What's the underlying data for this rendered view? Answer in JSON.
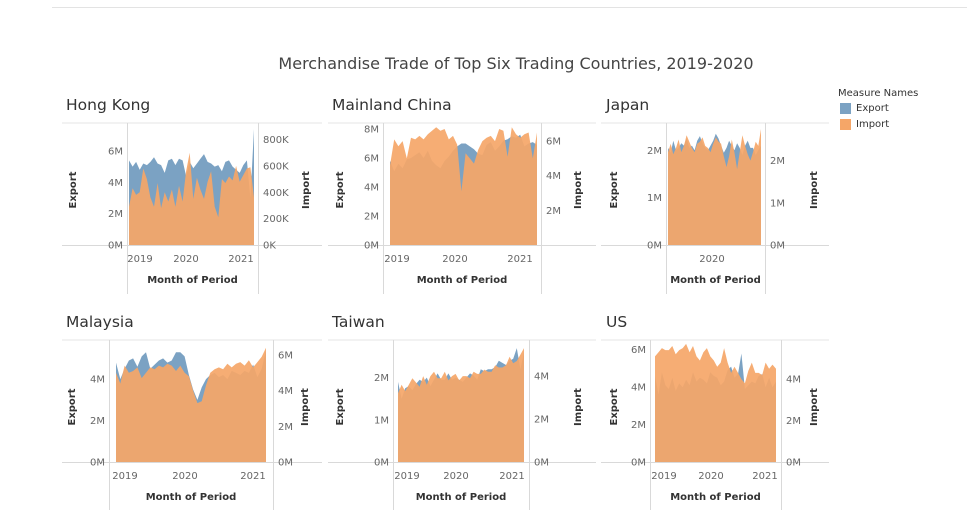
{
  "title": "Merchandise Trade of Top Six Trading Countries, 2019-2020",
  "legend": {
    "title": "Measure Names",
    "items": [
      {
        "label": "Export",
        "color": "#7ba2c3"
      },
      {
        "label": "Import",
        "color": "#f5a668"
      }
    ]
  },
  "chart_data": [
    {
      "type": "area",
      "title": "Hong Kong",
      "x_ticks": [
        "2019",
        "2020",
        "2021"
      ],
      "xlabel": "Month of Period",
      "y_left": {
        "label": "Export",
        "ticks": [
          "0M",
          "2M",
          "4M",
          "6M"
        ],
        "max": 7.4
      },
      "y_right": {
        "label": "Import",
        "ticks": [
          "0K",
          "200K",
          "400K",
          "600K",
          "800K"
        ],
        "max": 880
      },
      "series": [
        {
          "name": "Export",
          "values": [
            5.4,
            5.0,
            5.3,
            4.8,
            5.2,
            5.1,
            5.3,
            5.6,
            5.2,
            5.1,
            4.6,
            5.4,
            5.5,
            5.1,
            5.5,
            5.4,
            4.4,
            5.3,
            4.9,
            5.2,
            5.5,
            5.8,
            5.3,
            5.2,
            5.0,
            5.1,
            4.7,
            5.3,
            5.4,
            5.0,
            4.8,
            4.6,
            5.1,
            5.4,
            3.0,
            7.4
          ]
        },
        {
          "name": "Import",
          "values": [
            290,
            430,
            380,
            400,
            580,
            500,
            360,
            290,
            470,
            280,
            400,
            330,
            420,
            290,
            450,
            330,
            560,
            700,
            350,
            510,
            420,
            350,
            480,
            560,
            290,
            210,
            500,
            470,
            520,
            490,
            600,
            480,
            530,
            580,
            590,
            360
          ]
        }
      ]
    },
    {
      "type": "area",
      "title": "Mainland China",
      "x_ticks": [
        "2019",
        "2020",
        "2021"
      ],
      "xlabel": "Month of Period",
      "y_left": {
        "label": "Export",
        "ticks": [
          "0M",
          "2M",
          "4M",
          "6M",
          "8M"
        ],
        "max": 8.0
      },
      "y_right": {
        "label": "Import",
        "ticks": [
          "2M",
          "4M",
          "6M"
        ],
        "max": 6.7
      },
      "series": [
        {
          "name": "Export",
          "values": [
            5.8,
            5.1,
            5.6,
            5.3,
            5.9,
            6.0,
            6.2,
            6.4,
            6.0,
            6.5,
            5.8,
            5.5,
            5.3,
            5.8,
            6.1,
            6.5,
            6.8,
            7.0,
            7.0,
            6.8,
            6.6,
            6.3,
            6.2,
            6.9,
            7.1,
            6.5,
            6.8,
            7.2,
            7.3,
            7.5,
            7.4,
            7.6,
            6.8,
            7.0,
            7.1,
            6.9
          ]
        },
        {
          "name": "Import",
          "values": [
            4.6,
            6.1,
            5.7,
            6.0,
            5.0,
            6.2,
            6.1,
            6.3,
            6.1,
            6.4,
            6.6,
            6.8,
            6.6,
            6.7,
            6.1,
            6.3,
            5.8,
            3.1,
            5.3,
            5.0,
            4.7,
            5.5,
            6.0,
            6.2,
            6.3,
            6.0,
            6.7,
            6.6,
            5.1,
            6.8,
            6.4,
            6.2,
            6.4,
            6.5,
            5.0,
            6.5
          ]
        }
      ]
    },
    {
      "type": "area",
      "title": "Japan",
      "x_ticks": [
        "2020"
      ],
      "xlabel": "Month of Period",
      "y_left": {
        "label": "Export",
        "ticks": [
          "0M",
          "1M",
          "2M"
        ],
        "max": 2.45
      },
      "y_right": {
        "label": "Import",
        "ticks": [
          "0M",
          "1M",
          "2M"
        ],
        "max": 2.75
      },
      "series": [
        {
          "name": "Export",
          "values": [
            2.05,
            1.95,
            2.2,
            2.0,
            2.05,
            2.15,
            2.1,
            2.25,
            2.05,
            2.1,
            2.0,
            2.2,
            2.3,
            2.15,
            2.05,
            2.0,
            2.1,
            2.2,
            2.35,
            2.25,
            2.1,
            1.95,
            2.05,
            2.2,
            2.1,
            2.0,
            2.15,
            2.05,
            1.9,
            2.1,
            2.2,
            2.05,
            2.05,
            1.9,
            2.0,
            2.1
          ]
        },
        {
          "name": "Import",
          "values": [
            2.2,
            2.4,
            2.15,
            2.3,
            2.5,
            2.2,
            2.35,
            2.6,
            2.45,
            2.3,
            2.2,
            2.4,
            2.45,
            2.55,
            2.35,
            2.3,
            2.2,
            2.4,
            2.55,
            2.45,
            2.4,
            2.1,
            1.85,
            2.1,
            2.5,
            2.2,
            1.8,
            2.2,
            2.6,
            2.35,
            2.15,
            2.0,
            2.2,
            2.45,
            2.35,
            2.75
          ]
        }
      ]
    },
    {
      "type": "area",
      "title": "Malaysia",
      "x_ticks": [
        "2019",
        "2020",
        "2021"
      ],
      "xlabel": "Month of Period",
      "y_left": {
        "label": "Export",
        "ticks": [
          "0M",
          "2M",
          "4M"
        ],
        "max": 5.6
      },
      "y_right": {
        "label": "Import",
        "ticks": [
          "0M",
          "2M",
          "4M",
          "6M"
        ],
        "max": 6.5
      },
      "series": [
        {
          "name": "Export",
          "values": [
            4.8,
            4.0,
            4.5,
            4.9,
            5.0,
            4.6,
            5.1,
            5.3,
            4.5,
            4.7,
            4.9,
            5.0,
            4.8,
            4.9,
            5.3,
            5.3,
            5.1,
            4.2,
            3.5,
            3.0,
            3.6,
            4.0,
            4.2,
            4.3,
            4.1,
            4.2,
            4.0,
            4.4,
            4.3,
            4.2,
            4.4,
            4.3,
            4.7,
            4.1,
            4.5,
            5.4
          ]
        },
        {
          "name": "Import",
          "values": [
            5.0,
            4.4,
            5.4,
            5.0,
            5.1,
            5.3,
            4.7,
            5.0,
            5.3,
            5.2,
            5.4,
            5.3,
            5.5,
            5.4,
            5.1,
            5.4,
            5.0,
            4.8,
            4.0,
            3.3,
            3.4,
            4.3,
            5.0,
            5.2,
            5.3,
            5.2,
            5.5,
            5.3,
            5.5,
            5.6,
            5.4,
            5.7,
            5.3,
            5.6,
            5.9,
            6.4
          ]
        }
      ]
    },
    {
      "type": "area",
      "title": "Taiwan",
      "x_ticks": [
        "2019",
        "2020",
        "2021"
      ],
      "xlabel": "Month of Period",
      "y_left": {
        "label": "Export",
        "ticks": [
          "0M",
          "1M",
          "2M"
        ],
        "max": 2.75
      },
      "y_right": {
        "label": "Import",
        "ticks": [
          "0M",
          "2M",
          "4M"
        ],
        "max": 5.4
      },
      "series": [
        {
          "name": "Export",
          "values": [
            1.9,
            1.5,
            1.75,
            1.8,
            1.7,
            1.85,
            1.95,
            1.9,
            2.0,
            1.8,
            1.95,
            2.1,
            1.95,
            1.95,
            2.1,
            1.95,
            2.0,
            1.95,
            1.9,
            2.0,
            2.1,
            2.05,
            1.95,
            2.2,
            2.15,
            2.2,
            2.2,
            2.25,
            2.4,
            2.35,
            2.3,
            2.4,
            2.45,
            2.7,
            2.2,
            2.6
          ]
        },
        {
          "name": "Import",
          "values": [
            3.2,
            3.6,
            3.3,
            3.6,
            3.9,
            3.7,
            3.5,
            4.0,
            3.6,
            4.0,
            4.2,
            3.9,
            3.9,
            4.2,
            3.8,
            4.0,
            4.1,
            3.8,
            4.0,
            4.0,
            3.9,
            4.2,
            4.1,
            4.1,
            4.3,
            4.2,
            4.2,
            4.5,
            4.4,
            4.4,
            4.5,
            4.9,
            4.6,
            4.7,
            5.0,
            5.3
          ]
        }
      ]
    },
    {
      "type": "area",
      "title": "US",
      "x_ticks": [
        "2019",
        "2020",
        "2021"
      ],
      "xlabel": "Month of Period",
      "y_left": {
        "label": "Export",
        "ticks": [
          "0M",
          "2M",
          "4M",
          "6M"
        ],
        "max": 6.2
      },
      "y_right": {
        "label": "Import",
        "ticks": [
          "0M",
          "2M",
          "4M"
        ],
        "max": 5.6
      },
      "series": [
        {
          "name": "Export",
          "values": [
            4.6,
            3.6,
            4.8,
            4.1,
            3.9,
            4.5,
            3.8,
            4.2,
            4.0,
            4.4,
            4.1,
            4.8,
            4.3,
            4.5,
            4.4,
            4.2,
            4.8,
            4.6,
            4.5,
            4.1,
            4.3,
            4.9,
            5.1,
            4.5,
            4.7,
            5.8,
            3.9,
            4.1,
            4.3,
            4.2,
            4.6,
            4.7,
            4.0,
            4.5,
            4.0,
            4.3
          ]
        },
        {
          "name": "Import",
          "values": [
            5.1,
            5.3,
            5.5,
            5.4,
            5.4,
            5.6,
            5.2,
            5.4,
            5.5,
            5.7,
            5.3,
            5.6,
            5.1,
            4.9,
            5.3,
            5.5,
            5.1,
            4.9,
            4.6,
            4.8,
            5.5,
            4.8,
            4.3,
            4.6,
            4.3,
            4.0,
            3.8,
            4.4,
            4.8,
            4.3,
            4.3,
            4.2,
            4.8,
            4.5,
            4.7,
            4.5
          ]
        }
      ]
    }
  ]
}
